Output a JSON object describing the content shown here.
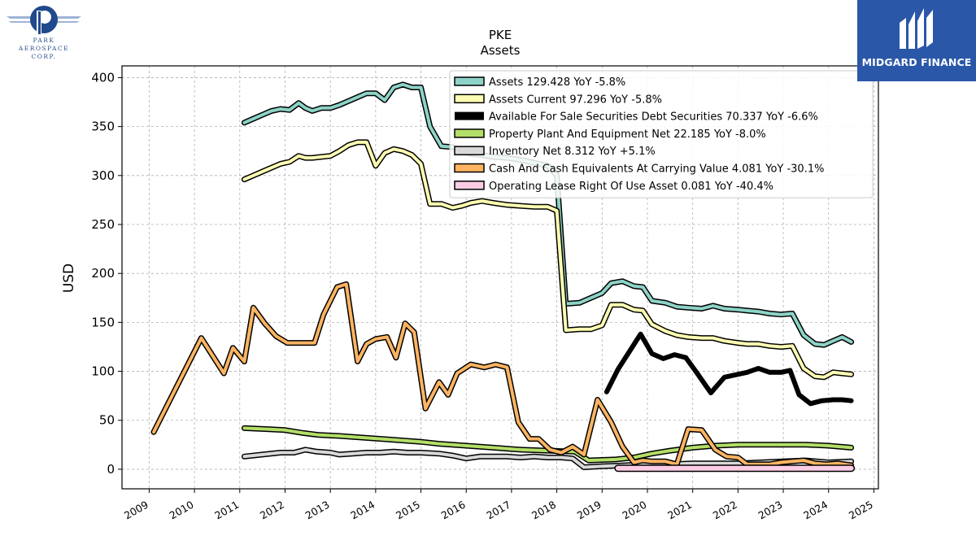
{
  "logos": {
    "left": {
      "lines": [
        "PARK",
        "AEROSPACE",
        "CORP."
      ]
    },
    "right": {
      "name": "MIDGARD FINANCE",
      "color": "#2a57a8"
    }
  },
  "chart_data": {
    "type": "line",
    "title": "PKE",
    "subtitle": "Assets",
    "xlabel": "",
    "ylabel": "USD",
    "xlim": [
      2008.4,
      2025.1
    ],
    "ylim": [
      -20,
      412
    ],
    "x_ticks": [
      "2009",
      "2010",
      "2011",
      "2012",
      "2013",
      "2014",
      "2015",
      "2016",
      "2017",
      "2018",
      "2019",
      "2020",
      "2021",
      "2022",
      "2023",
      "2024",
      "2025"
    ],
    "y_ticks": [
      "0",
      "50",
      "100",
      "150",
      "200",
      "250",
      "300",
      "350",
      "400"
    ],
    "grid": true,
    "legend_position": "top-right",
    "series": [
      {
        "name": "Assets",
        "legend": "Assets  129.428 YoY -5.8%",
        "color": "#8dd3c7",
        "width": 4,
        "x": [
          2011.1,
          2011.3,
          2011.5,
          2011.7,
          2011.9,
          2012.1,
          2012.3,
          2012.45,
          2012.6,
          2012.8,
          2013.0,
          2013.2,
          2013.4,
          2013.6,
          2013.8,
          2014.0,
          2014.2,
          2014.4,
          2014.6,
          2014.8,
          2015.0,
          2015.2,
          2015.45,
          2015.7,
          2015.9,
          2016.1,
          2016.35,
          2016.6,
          2016.9,
          2017.2,
          2017.5,
          2017.8,
          2018.0,
          2018.2,
          2018.5,
          2018.75,
          2019.0,
          2019.2,
          2019.45,
          2019.7,
          2019.9,
          2020.1,
          2020.4,
          2020.65,
          2020.9,
          2021.2,
          2021.45,
          2021.7,
          2022.0,
          2022.2,
          2022.45,
          2022.7,
          2022.95,
          2023.2,
          2023.45,
          2023.7,
          2023.9,
          2024.1,
          2024.3,
          2024.5
        ],
        "y": [
          354,
          358,
          362,
          366,
          368,
          367,
          374,
          369,
          366,
          369,
          369,
          372,
          376,
          380,
          384,
          384,
          377,
          390,
          393,
          390,
          390,
          350,
          330,
          329,
          326,
          322,
          321,
          319,
          318,
          316,
          313,
          310,
          300,
          169,
          170,
          175,
          180,
          190,
          192,
          187,
          186,
          172,
          170,
          166,
          165,
          164,
          167,
          164,
          163,
          162,
          161,
          159,
          158,
          159,
          137,
          128,
          127,
          131,
          135,
          130
        ]
      },
      {
        "name": "Assets Current",
        "legend": "Assets Current  97.296 YoY -5.8%",
        "color": "#ffffb3",
        "width": 4,
        "x": [
          2011.1,
          2011.3,
          2011.5,
          2011.7,
          2011.9,
          2012.1,
          2012.3,
          2012.45,
          2012.6,
          2012.8,
          2013.0,
          2013.2,
          2013.4,
          2013.6,
          2013.8,
          2014.0,
          2014.2,
          2014.4,
          2014.6,
          2014.8,
          2015.0,
          2015.2,
          2015.45,
          2015.7,
          2015.9,
          2016.1,
          2016.35,
          2016.6,
          2016.9,
          2017.2,
          2017.5,
          2017.8,
          2018.0,
          2018.2,
          2018.5,
          2018.75,
          2019.0,
          2019.2,
          2019.45,
          2019.7,
          2019.9,
          2020.1,
          2020.4,
          2020.65,
          2020.9,
          2021.2,
          2021.45,
          2021.7,
          2022.0,
          2022.2,
          2022.45,
          2022.7,
          2022.95,
          2023.2,
          2023.45,
          2023.7,
          2023.9,
          2024.1,
          2024.3,
          2024.5
        ],
        "y": [
          296,
          300,
          304,
          308,
          312,
          314,
          320,
          318,
          318,
          319,
          320,
          325,
          331,
          334,
          334,
          310,
          323,
          327,
          325,
          321,
          312,
          271,
          271,
          267,
          269,
          272,
          274,
          272,
          270,
          269,
          268,
          268,
          264,
          142,
          143,
          143,
          147,
          168,
          168,
          163,
          162,
          148,
          141,
          137,
          135,
          134,
          134,
          131,
          129,
          128,
          128,
          126,
          125,
          126,
          103,
          95,
          94,
          99,
          98,
          97
        ]
      },
      {
        "name": "Available For Sale Securities Debt Securities",
        "legend": "Available For Sale Securities Debt Securities  70.337 YoY -6.6%",
        "color": "#000000",
        "width": 6,
        "x": [
          2019.1,
          2019.35,
          2019.6,
          2019.85,
          2020.1,
          2020.35,
          2020.6,
          2020.85,
          2021.1,
          2021.4,
          2021.7,
          2022.0,
          2022.2,
          2022.45,
          2022.7,
          2022.95,
          2023.15,
          2023.35,
          2023.6,
          2023.85,
          2024.1,
          2024.3,
          2024.5
        ],
        "y": [
          79,
          102,
          120,
          138,
          118,
          113,
          117,
          114,
          98,
          78,
          94,
          97,
          99,
          103,
          99,
          99,
          101,
          76,
          67,
          70,
          71,
          71,
          70
        ]
      },
      {
        "name": "Property Plant And Equipment Net",
        "legend": "Property Plant And Equipment Net  22.185 YoY -8.0%",
        "color": "#b3de69",
        "width": 4,
        "x": [
          2011.1,
          2011.6,
          2012.0,
          2012.4,
          2012.75,
          2013.2,
          2013.8,
          2014.4,
          2015.0,
          2015.4,
          2016.0,
          2016.6,
          2017.2,
          2017.8,
          2018.4,
          2018.7,
          2019.3,
          2019.7,
          2020.1,
          2020.5,
          2021.0,
          2021.5,
          2022.0,
          2022.5,
          2023.0,
          2023.5,
          2024.0,
          2024.5
        ],
        "y": [
          42,
          41,
          40,
          37,
          35,
          34,
          32,
          30,
          28,
          26,
          24,
          22,
          20,
          19,
          18,
          9,
          10,
          12,
          16,
          19,
          22,
          24,
          25,
          25,
          25,
          25,
          24,
          22
        ]
      },
      {
        "name": "Inventory Net",
        "legend": "Inventory Net  8.312 YoY +5.1%",
        "color": "#d9d9d9",
        "width": 4,
        "x": [
          2011.1,
          2011.5,
          2011.9,
          2012.2,
          2012.45,
          2012.7,
          2013.0,
          2013.2,
          2013.5,
          2013.8,
          2014.1,
          2014.4,
          2014.7,
          2015.0,
          2015.4,
          2015.7,
          2016.0,
          2016.3,
          2016.6,
          2016.9,
          2017.2,
          2017.5,
          2017.8,
          2018.1,
          2018.35,
          2018.6,
          2019.0,
          2019.5,
          2020.0,
          2020.5,
          2021.0,
          2021.5,
          2022.0,
          2022.5,
          2023.0,
          2023.5,
          2024.0,
          2024.5
        ],
        "y": [
          13,
          15,
          17,
          17,
          20,
          18,
          17,
          15,
          16,
          17,
          17,
          18,
          17,
          17,
          16,
          14,
          11,
          13,
          13,
          13,
          12,
          13,
          12,
          12,
          11,
          2,
          3,
          4,
          5,
          5,
          6,
          6,
          6,
          7,
          8,
          9,
          7,
          8
        ]
      },
      {
        "name": "Cash And Cash Equivalents At Carrying Value",
        "legend": "Cash And Cash Equivalents At Carrying Value  4.081 YoY -30.1%",
        "color": "#fdb462",
        "width": 4,
        "x": [
          2009.1,
          2010.15,
          2010.65,
          2010.85,
          2011.1,
          2011.3,
          2011.55,
          2011.8,
          2012.05,
          2012.3,
          2012.65,
          2012.85,
          2013.15,
          2013.35,
          2013.6,
          2013.8,
          2014.0,
          2014.25,
          2014.45,
          2014.65,
          2014.85,
          2015.1,
          2015.4,
          2015.6,
          2015.8,
          2016.1,
          2016.4,
          2016.65,
          2016.9,
          2017.15,
          2017.4,
          2017.6,
          2017.85,
          2018.1,
          2018.35,
          2018.6,
          2018.9,
          2019.2,
          2019.45,
          2019.7,
          2019.9,
          2020.1,
          2020.4,
          2020.65,
          2020.9,
          2021.2,
          2021.5,
          2021.75,
          2022.0,
          2022.2,
          2022.45,
          2022.7,
          2022.95,
          2023.2,
          2023.45,
          2023.7,
          2023.95,
          2024.2,
          2024.5
        ],
        "y": [
          38,
          134,
          98,
          124,
          110,
          165,
          149,
          136,
          129,
          129,
          129,
          158,
          186,
          189,
          110,
          128,
          133,
          135,
          114,
          149,
          140,
          62,
          89,
          76,
          98,
          107,
          104,
          107,
          104,
          48,
          31,
          31,
          20,
          17,
          23,
          15,
          71,
          48,
          23,
          7,
          9,
          8,
          8,
          5,
          41,
          40,
          20,
          13,
          12,
          5,
          5,
          5,
          7,
          8,
          9,
          6,
          5,
          6,
          4
        ]
      },
      {
        "name": "Operating Lease Right Of Use Asset",
        "legend": "Operating Lease Right Of Use Asset  0.081 YoY -40.4%",
        "color": "#fccde5",
        "width": 6,
        "x": [
          2019.35,
          2020.0,
          2020.5,
          2021.0,
          2021.5,
          2022.0,
          2022.5,
          2023.0,
          2023.5,
          2024.0,
          2024.5
        ],
        "y": [
          1,
          1,
          1,
          1,
          1,
          1,
          1,
          1,
          1,
          1,
          1
        ]
      }
    ]
  }
}
